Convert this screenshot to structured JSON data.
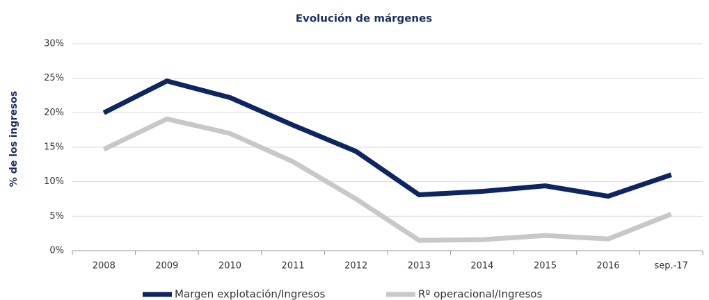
{
  "chart_data": {
    "type": "line",
    "title": "Evolución de márgenes",
    "y_label": "% de los ingresos",
    "categories": [
      "2008",
      "2009",
      "2010",
      "2011",
      "2012",
      "2013",
      "2014",
      "2015",
      "2016",
      "sep.-17"
    ],
    "series": [
      {
        "name": "Margen explotación/Ingresos",
        "color": "#0d2561",
        "values": [
          20.0,
          24.6,
          22.2,
          18.2,
          14.4,
          8.1,
          8.6,
          9.4,
          7.9,
          11.0
        ]
      },
      {
        "name": "Rº operacional/Ingresos",
        "color": "#c8c8c8",
        "values": [
          14.7,
          19.1,
          17.0,
          12.9,
          7.5,
          1.5,
          1.6,
          2.2,
          1.7,
          5.3
        ]
      }
    ],
    "ylim": [
      0,
      30
    ],
    "yticks": [
      {
        "value": 0,
        "label": "0%"
      },
      {
        "value": 5,
        "label": "5%"
      },
      {
        "value": 10,
        "label": "10%"
      },
      {
        "value": 15,
        "label": "15%"
      },
      {
        "value": 20,
        "label": "20%"
      },
      {
        "value": 25,
        "label": "25%"
      },
      {
        "value": 30,
        "label": "30%"
      }
    ],
    "grid": true,
    "legend": "bottom"
  }
}
